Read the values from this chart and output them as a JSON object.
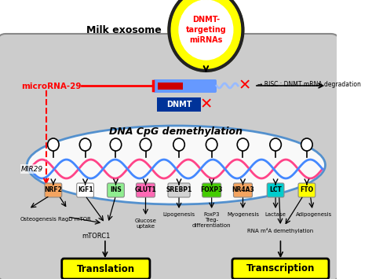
{
  "bg_color": "#cccccc",
  "fig_bg": "#ffffff",
  "exosome_text": "DNMT-\ntargeting\nmiRNAs",
  "milk_exosome_text": "Milk exosome",
  "gene_labels": [
    "NRF2",
    "IGF1",
    "INS",
    "GLUT1",
    "SREBP1",
    "FOXP3",
    "NR4A3",
    "LCT",
    "FTO"
  ],
  "gene_colors": [
    "#f4a460",
    "#ffffff",
    "#90ee90",
    "#ff69b4",
    "#d3d3d3",
    "#44cc00",
    "#f4a460",
    "#00cccc",
    "#ffff00"
  ],
  "gene_border_colors": [
    "#888888",
    "#888888",
    "#888888",
    "#888888",
    "#888888",
    "#888888",
    "#888888",
    "#888888",
    "#888888"
  ],
  "translation_text": "Translation",
  "transcription_text": "Transcription"
}
